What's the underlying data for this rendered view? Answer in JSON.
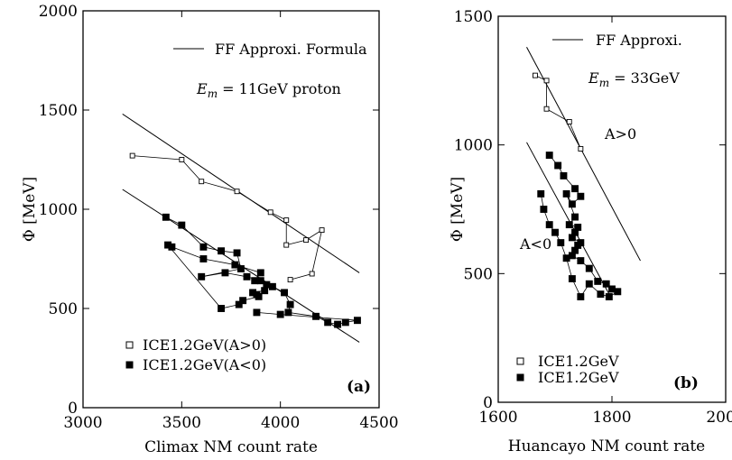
{
  "chart_data": [
    {
      "type": "scatter",
      "panel_tag": "(a)",
      "xlabel": "Climax NM count rate",
      "ylabel": "Φ [MeV]",
      "xlim": [
        3000,
        4500
      ],
      "ylim": [
        0,
        2000
      ],
      "xticks": [
        "3000",
        "3500",
        "4000",
        "4500"
      ],
      "yticks": [
        "0",
        "500",
        "1000",
        "1500",
        "2000"
      ],
      "annotations": [
        "FF Approxi. Formula",
        "E_m = 11GeV proton"
      ],
      "legend": {
        "line_label": "FF Approxi. Formula",
        "open_label": "ICE1.2GeV(A>0)",
        "filled_label": "ICE1.2GeV(A<0)",
        "position": "bottom-left"
      },
      "fit_lines": [
        {
          "x": [
            3200,
            4400
          ],
          "y": [
            1480,
            680
          ]
        },
        {
          "x": [
            3200,
            4400
          ],
          "y": [
            1100,
            330
          ]
        }
      ],
      "series": [
        {
          "name": "ICE1.2GeV(A>0)",
          "marker": "open-square",
          "x": [
            3250,
            3500,
            3600,
            3780,
            3950,
            4030,
            4030,
            4130,
            4210,
            4160,
            4050
          ],
          "y": [
            1270,
            1250,
            1140,
            1090,
            985,
            945,
            820,
            845,
            895,
            675,
            645
          ]
        },
        {
          "name": "ICE1.2GeV(A<0)",
          "marker": "filled-square",
          "x": [
            3420,
            3500,
            3610,
            3700,
            3780,
            3800,
            3600,
            3720,
            3830,
            3900,
            3930,
            3920,
            3860,
            3880,
            3890,
            3810,
            3790,
            3700,
            3430,
            3450,
            3610,
            3770,
            3900,
            3870,
            3960,
            4020,
            4050,
            4040,
            4180,
            4240,
            4290,
            4330,
            4390,
            4000,
            3880
          ],
          "y": [
            960,
            920,
            810,
            790,
            780,
            700,
            660,
            680,
            660,
            640,
            620,
            590,
            580,
            570,
            560,
            540,
            520,
            500,
            820,
            810,
            750,
            720,
            680,
            640,
            610,
            580,
            520,
            480,
            460,
            430,
            420,
            430,
            440,
            470,
            480
          ]
        }
      ]
    },
    {
      "type": "scatter",
      "panel_tag": "(b)",
      "xlabel": "Huancayo NM count rate",
      "ylabel": "Φ [MeV]",
      "xlim": [
        1600,
        2000
      ],
      "ylim": [
        0,
        1500
      ],
      "xticks": [
        "1600",
        "1800",
        "2000"
      ],
      "yticks": [
        "0",
        "500",
        "1000",
        "1500"
      ],
      "annotations": [
        "FF Approxi.",
        "E_m = 33GeV",
        "A>0",
        "A<0"
      ],
      "legend": {
        "line_label": "FF Approxi.",
        "open_label": "ICE1.2GeV",
        "filled_label": "ICE1.2GeV",
        "position": "bottom-left"
      },
      "fit_lines": [
        {
          "x": [
            1650,
            1850
          ],
          "y": [
            1380,
            550
          ]
        },
        {
          "x": [
            1650,
            1800
          ],
          "y": [
            1010,
            400
          ]
        }
      ],
      "series": [
        {
          "name": "ICE1.2GeV",
          "marker": "open-square",
          "x": [
            1665,
            1685,
            1685,
            1725,
            1745
          ],
          "y": [
            1270,
            1250,
            1140,
            1090,
            985
          ]
        },
        {
          "name": "ICE1.2GeV",
          "marker": "filled-square",
          "x": [
            1690,
            1705,
            1715,
            1735,
            1745,
            1730,
            1720,
            1735,
            1725,
            1740,
            1735,
            1730,
            1745,
            1740,
            1735,
            1730,
            1745,
            1760,
            1775,
            1790,
            1800,
            1810,
            1795,
            1780,
            1760,
            1745,
            1730,
            1720,
            1710,
            1700,
            1690,
            1680,
            1675
          ],
          "y": [
            960,
            920,
            880,
            830,
            800,
            770,
            810,
            720,
            690,
            680,
            660,
            640,
            620,
            610,
            590,
            570,
            550,
            520,
            470,
            460,
            440,
            430,
            410,
            420,
            460,
            410,
            480,
            560,
            620,
            660,
            690,
            750,
            810
          ]
        }
      ]
    }
  ]
}
